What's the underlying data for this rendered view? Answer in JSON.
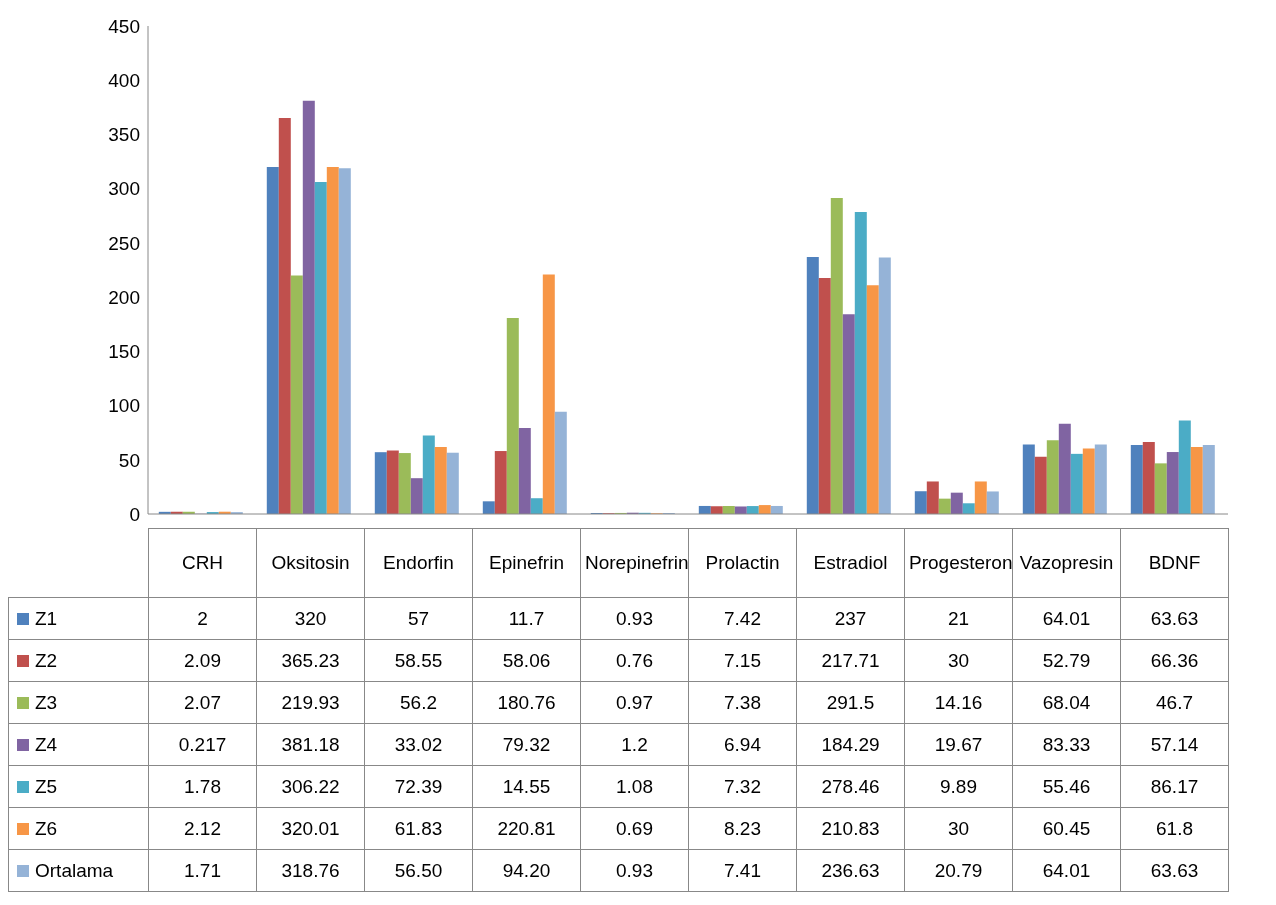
{
  "chart_data": {
    "type": "bar",
    "categories": [
      "CRH",
      "Oksitosin",
      "Endorfin",
      "Epinefrin",
      "Norepinefrin",
      "Prolactin",
      "Estradiol",
      "Progesteron",
      "Vazopresin",
      "BDNF"
    ],
    "series": [
      {
        "name": "Z1",
        "color": "#4f81bd",
        "values": [
          2,
          320,
          57,
          11.7,
          0.93,
          7.42,
          237,
          21,
          64.01,
          63.63
        ],
        "value_labels": [
          "2",
          "320",
          "57",
          "11.7",
          "0.93",
          "7.42",
          "237",
          "21",
          "64.01",
          "63.63"
        ]
      },
      {
        "name": "Z2",
        "color": "#c0504d",
        "values": [
          2.09,
          365.23,
          58.55,
          58.06,
          0.76,
          7.15,
          217.71,
          30,
          52.79,
          66.36
        ],
        "value_labels": [
          "2.09",
          "365.23",
          "58.55",
          "58.06",
          "0.76",
          "7.15",
          "217.71",
          "30",
          "52.79",
          "66.36"
        ]
      },
      {
        "name": "Z3",
        "color": "#9bbb59",
        "values": [
          2.07,
          219.93,
          56.2,
          180.76,
          0.97,
          7.38,
          291.5,
          14.16,
          68.04,
          46.7
        ],
        "value_labels": [
          "2.07",
          "219.93",
          "56.2",
          "180.76",
          "0.97",
          "7.38",
          "291.5",
          "14.16",
          "68.04",
          "46.7"
        ]
      },
      {
        "name": "Z4",
        "color": "#8064a2",
        "values": [
          0.217,
          381.18,
          33.02,
          79.32,
          1.2,
          6.94,
          184.29,
          19.67,
          83.33,
          57.14
        ],
        "value_labels": [
          "0.217",
          "381.18",
          "33.02",
          "79.32",
          "1.2",
          "6.94",
          "184.29",
          "19.67",
          "83.33",
          "57.14"
        ]
      },
      {
        "name": "Z5",
        "color": "#4bacc6",
        "values": [
          1.78,
          306.22,
          72.39,
          14.55,
          1.08,
          7.32,
          278.46,
          9.89,
          55.46,
          86.17
        ],
        "value_labels": [
          "1.78",
          "306.22",
          "72.39",
          "14.55",
          "1.08",
          "7.32",
          "278.46",
          "9.89",
          "55.46",
          "86.17"
        ]
      },
      {
        "name": "Z6",
        "color": "#f79646",
        "values": [
          2.12,
          320.01,
          61.83,
          220.81,
          0.69,
          8.23,
          210.83,
          30,
          60.45,
          61.8
        ],
        "value_labels": [
          "2.12",
          "320.01",
          "61.83",
          "220.81",
          "0.69",
          "8.23",
          "210.83",
          "30",
          "60.45",
          "61.8"
        ]
      },
      {
        "name": "Ortalama",
        "color": "#95b3d7",
        "values": [
          1.71,
          318.76,
          56.5,
          94.2,
          0.93,
          7.41,
          236.63,
          20.79,
          64.01,
          63.63
        ],
        "value_labels": [
          "1.71",
          "318.76",
          "56.50",
          "94.20",
          "0.93",
          "7.41",
          "236.63",
          "20.79",
          "64.01",
          "63.63"
        ]
      }
    ],
    "ylim": [
      0,
      450
    ],
    "yticks": [
      0,
      50,
      100,
      150,
      200,
      250,
      300,
      350,
      400,
      450
    ],
    "grid": false,
    "legend": "bottom"
  }
}
